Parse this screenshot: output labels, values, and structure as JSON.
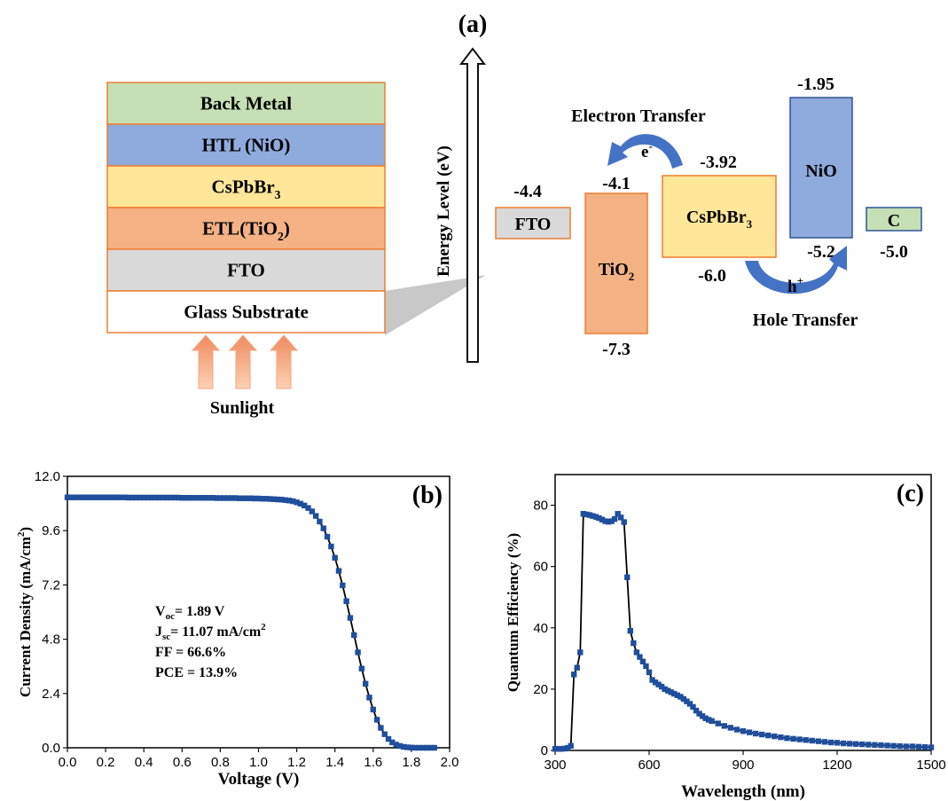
{
  "panel_a": {
    "label": "(a)",
    "stack_layers": [
      {
        "id": "back-metal",
        "label": "Back Metal",
        "sub": "",
        "tail": "",
        "color": "#c5e0b4"
      },
      {
        "id": "htl",
        "label": "HTL (NiO)",
        "sub": "",
        "tail": "",
        "color": "#8faadc"
      },
      {
        "id": "cspbbr3",
        "label": "CsPbBr",
        "sub": "3",
        "tail": "",
        "color": "#ffe699"
      },
      {
        "id": "etl",
        "label": "ETL(TiO",
        "sub": "2",
        "tail": ")",
        "color": "#f4b183"
      },
      {
        "id": "fto",
        "label": "FTO",
        "sub": "",
        "tail": "",
        "color": "#d9d9d9"
      },
      {
        "id": "glass",
        "label": "Glass Substrate",
        "sub": "",
        "tail": "",
        "color": "#ffffff"
      }
    ],
    "sunlight_label": "Sunlight",
    "energy_axis_label": "Energy Level (eV)",
    "electron_transfer": "Electron Transfer",
    "electron_symbol": "e",
    "electron_sup": "-",
    "hole_transfer": "Hole Transfer",
    "hole_symbol": "h",
    "hole_sup": "+",
    "bands": [
      {
        "id": "fto",
        "label": "FTO",
        "sub": "",
        "color": "#d9d9d9",
        "top": "-4.4",
        "bottom": ""
      },
      {
        "id": "tio2",
        "label": "TiO",
        "sub": "2",
        "color": "#f4b183",
        "top": "-4.1",
        "bottom": "-7.3"
      },
      {
        "id": "cspbbr3",
        "label": "CsPbBr",
        "sub": "3",
        "color": "#ffe699",
        "top": "-3.92",
        "bottom": "-6.0"
      },
      {
        "id": "nio",
        "label": "NiO",
        "sub": "",
        "color": "#8faadc",
        "top": "-1.95",
        "bottom": "-5.2"
      },
      {
        "id": "c",
        "label": "C",
        "sub": "",
        "color": "#c5e0b4",
        "top": "",
        "bottom": "-5.0"
      }
    ]
  },
  "colors": {
    "marker": "#1f4e9c",
    "line": "#000000",
    "arrow": "#4472c4",
    "sun_arrow": "#f4b183",
    "border": "#ed7d31"
  },
  "chart_data": [
    {
      "id": "b",
      "type": "line",
      "panel_label": "(b)",
      "xlabel": "Voltage (V)",
      "ylabel": "Current Density (mA/cm2)",
      "ylabel_main": "Current Density (mA/cm",
      "ylabel_sup": "2",
      "ylabel_tail": ")",
      "xlim": [
        0.0,
        2.0
      ],
      "ylim": [
        0.0,
        12.0
      ],
      "xticks": [
        "0.0",
        "0.2",
        "0.4",
        "0.6",
        "0.8",
        "1.0",
        "1.2",
        "1.4",
        "1.6",
        "1.8",
        "2.0"
      ],
      "yticks": [
        "0.0",
        "2.4",
        "4.8",
        "7.2",
        "9.6",
        "12.0"
      ],
      "annotations": [
        {
          "main": "V",
          "sub": "oc",
          "rest": "= 1.89 V",
          "sup": ""
        },
        {
          "main": "J",
          "sub": "sc",
          "rest": "= 11.07 mA/cm",
          "sup": "2"
        },
        {
          "main": "FF = 66.6%",
          "sub": "",
          "rest": "",
          "sup": ""
        },
        {
          "main": "PCE = 13.9%",
          "sub": "",
          "rest": "",
          "sup": ""
        }
      ],
      "x": [
        0.0,
        0.02,
        0.04,
        0.06,
        0.08,
        0.1,
        0.12,
        0.14,
        0.16,
        0.18,
        0.2,
        0.22,
        0.24,
        0.26,
        0.28,
        0.3,
        0.32,
        0.34,
        0.36,
        0.38,
        0.4,
        0.42,
        0.44,
        0.46,
        0.48,
        0.5,
        0.52,
        0.54,
        0.56,
        0.58,
        0.6,
        0.62,
        0.64,
        0.66,
        0.68,
        0.7,
        0.72,
        0.74,
        0.76,
        0.78,
        0.8,
        0.82,
        0.84,
        0.86,
        0.88,
        0.9,
        0.92,
        0.94,
        0.96,
        0.98,
        1.0,
        1.02,
        1.04,
        1.06,
        1.08,
        1.1,
        1.12,
        1.14,
        1.16,
        1.18,
        1.2,
        1.22,
        1.24,
        1.26,
        1.28,
        1.3,
        1.32,
        1.34,
        1.36,
        1.38,
        1.4,
        1.42,
        1.44,
        1.46,
        1.48,
        1.5,
        1.52,
        1.54,
        1.56,
        1.58,
        1.6,
        1.62,
        1.64,
        1.66,
        1.68,
        1.7,
        1.72,
        1.74,
        1.76,
        1.78,
        1.8,
        1.82,
        1.84,
        1.86,
        1.88,
        1.9,
        1.92
      ],
      "y": [
        11.07,
        11.07,
        11.07,
        11.07,
        11.07,
        11.07,
        11.07,
        11.07,
        11.07,
        11.07,
        11.07,
        11.07,
        11.07,
        11.07,
        11.07,
        11.07,
        11.06,
        11.06,
        11.06,
        11.06,
        11.06,
        11.06,
        11.06,
        11.06,
        11.06,
        11.06,
        11.06,
        11.06,
        11.06,
        11.06,
        11.05,
        11.05,
        11.05,
        11.05,
        11.05,
        11.05,
        11.05,
        11.05,
        11.05,
        11.04,
        11.04,
        11.04,
        11.04,
        11.04,
        11.04,
        11.03,
        11.03,
        11.03,
        11.03,
        11.02,
        11.02,
        11.01,
        11.01,
        11.0,
        10.99,
        10.98,
        10.97,
        10.95,
        10.93,
        10.9,
        10.85,
        10.79,
        10.71,
        10.6,
        10.45,
        10.25,
        10.0,
        9.7,
        9.33,
        8.9,
        8.4,
        7.82,
        7.18,
        6.48,
        5.74,
        4.98,
        4.22,
        3.5,
        2.83,
        2.22,
        1.69,
        1.24,
        0.88,
        0.6,
        0.39,
        0.24,
        0.14,
        0.08,
        0.04,
        0.02,
        0.01,
        0.0,
        0.0,
        0.0,
        0.0,
        0.0,
        0.0
      ]
    },
    {
      "id": "c",
      "type": "line",
      "panel_label": "(c)",
      "xlabel": "Wavelength (nm)",
      "ylabel": "Quantum Efficiency (%)",
      "xlim": [
        300,
        1500
      ],
      "ylim": [
        0,
        90
      ],
      "xticks": [
        "300",
        "600",
        "900",
        "1200",
        "1500"
      ],
      "yticks": [
        "0",
        "20",
        "40",
        "60",
        "80"
      ],
      "x": [
        300,
        310,
        320,
        330,
        340,
        350,
        360,
        370,
        380,
        390,
        400,
        410,
        420,
        430,
        440,
        450,
        460,
        470,
        480,
        490,
        500,
        510,
        520,
        530,
        540,
        550,
        560,
        570,
        580,
        590,
        600,
        610,
        620,
        630,
        640,
        650,
        660,
        670,
        680,
        690,
        700,
        710,
        720,
        730,
        740,
        750,
        760,
        770,
        780,
        790,
        800,
        820,
        840,
        860,
        880,
        900,
        920,
        940,
        960,
        980,
        1000,
        1020,
        1040,
        1060,
        1080,
        1100,
        1120,
        1140,
        1160,
        1180,
        1200,
        1220,
        1240,
        1260,
        1280,
        1300,
        1320,
        1340,
        1360,
        1380,
        1400,
        1420,
        1440,
        1460,
        1480,
        1500
      ],
      "y": [
        0.5,
        0.5,
        0.5,
        0.6,
        0.8,
        1.5,
        24.8,
        27.0,
        32.0,
        77.2,
        77.0,
        76.8,
        76.5,
        76.2,
        75.8,
        75.3,
        74.8,
        74.6,
        74.8,
        75.5,
        77.2,
        76.0,
        74.5,
        56.5,
        39.0,
        35.0,
        32.0,
        30.5,
        29.0,
        27.5,
        25.5,
        23.0,
        22.2,
        21.5,
        20.8,
        20.0,
        19.5,
        19.0,
        18.5,
        18.0,
        17.5,
        16.8,
        16.0,
        15.2,
        14.2,
        13.0,
        12.0,
        11.2,
        10.5,
        10.0,
        9.6,
        8.8,
        8.0,
        7.4,
        6.8,
        6.3,
        5.9,
        5.5,
        5.2,
        4.9,
        4.6,
        4.3,
        4.0,
        3.8,
        3.6,
        3.4,
        3.2,
        3.0,
        2.8,
        2.6,
        2.5,
        2.3,
        2.2,
        2.1,
        2.0,
        1.9,
        1.8,
        1.7,
        1.6,
        1.5,
        1.4,
        1.3,
        1.3,
        1.2,
        1.1,
        1.0
      ]
    }
  ]
}
